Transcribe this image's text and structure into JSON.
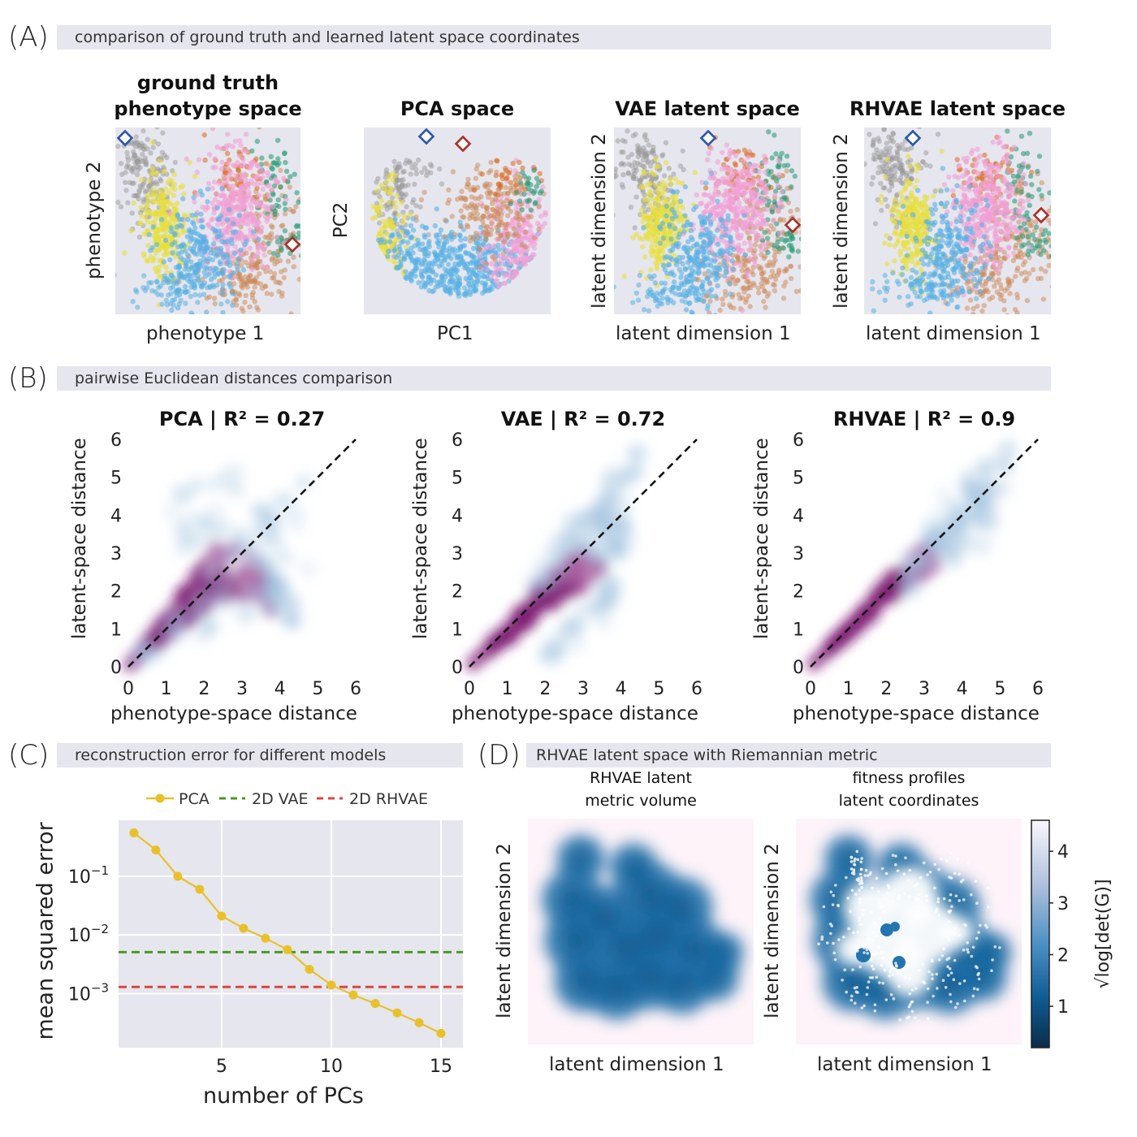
{
  "panel_A": {
    "label": "(A)",
    "band_title": "comparison of ground truth and learned latent space coordinates",
    "subplots": [
      {
        "title_line1": "ground truth",
        "title_line2": "phenotype space",
        "xlabel": "phenotype 1",
        "ylabel": "phenotype 2"
      },
      {
        "title_line1": "",
        "title_line2": "PCA space",
        "xlabel": "PC1",
        "ylabel": "PC2"
      },
      {
        "title_line1": "",
        "title_line2": "VAE latent space",
        "xlabel": "latent dimension 1",
        "ylabel": "latent dimension 2"
      },
      {
        "title_line1": "",
        "title_line2": "RHVAE latent space",
        "xlabel": "latent dimension 1",
        "ylabel": "latent dimension 2"
      }
    ],
    "colors": {
      "gray": "#9a9a9a",
      "yellow": "#e8df3a",
      "blue": "#58b0e4",
      "pink": "#f2a0d6",
      "orange": "#cc8855",
      "darkorange": "#d96a1f",
      "green": "#2f9e7a",
      "marker_blue": "#2b55a8",
      "marker_red": "#a83028"
    }
  },
  "panel_B": {
    "label": "(B)",
    "band_title": "pairwise Euclidean distances comparison",
    "subplots": [
      {
        "title": "PCA | R² = 0.27",
        "xlabel": "phenotype-space distance",
        "ylabel": "latent-space distance"
      },
      {
        "title": "VAE | R² = 0.72",
        "xlabel": "phenotype-space distance",
        "ylabel": "latent-space distance"
      },
      {
        "title": "RHVAE | R² = 0.9",
        "xlabel": "phenotype-space distance",
        "ylabel": "latent-space distance"
      }
    ],
    "ticks": [
      "0",
      "1",
      "2",
      "3",
      "4",
      "5",
      "6"
    ]
  },
  "panel_C": {
    "label": "(C)",
    "band_title": "reconstruction error for different models",
    "legend": {
      "pca": "PCA",
      "vae": "2D VAE",
      "rhvae": "2D RHVAE"
    },
    "xlabel": "number of PCs",
    "ylabel": "mean squared error",
    "xticks": [
      "5",
      "10",
      "15"
    ],
    "yticks": [
      "10",
      "10",
      "10"
    ],
    "yexps": [
      "−1",
      "−2",
      "−3"
    ],
    "colors": {
      "pca": "#e8c12a",
      "vae": "#4a9a22",
      "rhvae": "#d9473f"
    }
  },
  "panel_D": {
    "label": "(D)",
    "band_title": "RHVAE latent space with Riemannian metric",
    "subplots": [
      {
        "title_line1": "RHVAE latent",
        "title_line2": "metric volume",
        "xlabel": "latent dimension 1",
        "ylabel": "latent dimension 2"
      },
      {
        "title_line1": "fitness profiles",
        "title_line2": "latent coordinates",
        "xlabel": "latent dimension 1",
        "ylabel": "latent dimension 2"
      }
    ],
    "colorbar": {
      "label": "√log[det(G)]",
      "ticks": [
        "1",
        "2",
        "3",
        "4"
      ],
      "range": [
        0.2,
        4.6
      ]
    }
  },
  "chart_data": [
    {
      "type": "heatmap",
      "title": "PCA | R² = 0.27",
      "xlabel": "phenotype-space distance",
      "ylabel": "latent-space distance",
      "xlim": [
        0,
        6
      ],
      "ylim": [
        0,
        6
      ],
      "reference_line": {
        "x": [
          0,
          6
        ],
        "y": [
          0,
          6
        ],
        "style": "dashed"
      }
    },
    {
      "type": "heatmap",
      "title": "VAE | R² = 0.72",
      "xlabel": "phenotype-space distance",
      "ylabel": "latent-space distance",
      "xlim": [
        0,
        6
      ],
      "ylim": [
        0,
        6
      ],
      "reference_line": {
        "x": [
          0,
          6
        ],
        "y": [
          0,
          6
        ],
        "style": "dashed"
      }
    },
    {
      "type": "heatmap",
      "title": "RHVAE | R² = 0.9",
      "xlabel": "phenotype-space distance",
      "ylabel": "latent-space distance",
      "xlim": [
        0,
        6
      ],
      "ylim": [
        0,
        6
      ],
      "reference_line": {
        "x": [
          0,
          6
        ],
        "y": [
          0,
          6
        ],
        "style": "dashed"
      }
    },
    {
      "type": "line",
      "xlabel": "number of PCs",
      "ylabel": "mean squared error",
      "yscale": "log",
      "xlim": [
        0.3,
        16
      ],
      "ylim": [
        0.00012,
        0.9
      ],
      "series": [
        {
          "name": "PCA",
          "x": [
            1,
            2,
            3,
            4,
            5,
            6,
            7,
            8,
            9,
            10,
            11,
            12,
            13,
            14,
            15
          ],
          "y": [
            0.55,
            0.28,
            0.1,
            0.06,
            0.021,
            0.013,
            0.0088,
            0.0056,
            0.0026,
            0.0014,
            0.00095,
            0.00068,
            0.00047,
            0.00032,
            0.00021
          ]
        },
        {
          "name": "2D VAE",
          "constant": 0.0051
        },
        {
          "name": "2D RHVAE",
          "constant": 0.0013
        }
      ]
    }
  ]
}
